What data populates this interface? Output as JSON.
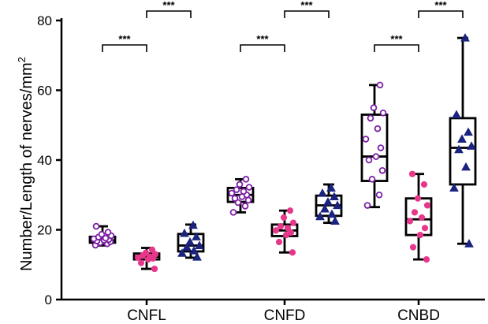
{
  "chart_data": {
    "type": "box",
    "ylabel": "Number/Length of nerves/mm",
    "ylabel_superscript": "2",
    "ylim": [
      0,
      80
    ],
    "yticks": [
      "0",
      "20",
      "40",
      "60",
      "80"
    ],
    "categories": [
      "CNFL",
      "CNFD",
      "CNBD"
    ],
    "series": [
      {
        "style": "purple-open-circle",
        "color": "#7b1fa2"
      },
      {
        "style": "pink-filled-circle",
        "color": "#e8378a"
      },
      {
        "style": "navy-filled-triangle",
        "color": "#1a237e"
      }
    ],
    "groups": [
      {
        "category": "CNFL",
        "boxes": [
          {
            "series": 0,
            "min": 15.5,
            "q1": 16.3,
            "median": 17.0,
            "q3": 18.0,
            "max": 21.0,
            "points": [
              15.6,
              16.0,
              16.3,
              16.6,
              16.8,
              17.0,
              17.2,
              17.4,
              17.6,
              17.9,
              18.3,
              18.7,
              19.3,
              21.0
            ]
          },
          {
            "series": 1,
            "min": 8.8,
            "q1": 11.5,
            "median": 12.3,
            "q3": 13.2,
            "max": 14.8,
            "points": [
              8.8,
              10.5,
              11.5,
              11.8,
              12.0,
              12.3,
              12.6,
              13.0,
              13.4,
              14.3
            ]
          },
          {
            "series": 2,
            "min": 12.0,
            "q1": 13.8,
            "median": 15.5,
            "q3": 18.8,
            "max": 21.5,
            "points": [
              12.2,
              13.3,
              14.0,
              15.0,
              15.5,
              16.5,
              18.0,
              19.0,
              21.3
            ]
          }
        ],
        "significance": [
          {
            "from": 0,
            "to": 1,
            "label": "***"
          },
          {
            "from": 1,
            "to": 2,
            "label": "***"
          }
        ]
      },
      {
        "category": "CNFD",
        "boxes": [
          {
            "series": 0,
            "min": 25.0,
            "q1": 28.0,
            "median": 30.0,
            "q3": 32.0,
            "max": 34.5,
            "points": [
              25.0,
              26.8,
              27.8,
              28.5,
              29.0,
              29.5,
              30.0,
              30.5,
              31.0,
              31.5,
              32.2,
              33.0,
              34.5
            ]
          },
          {
            "series": 1,
            "min": 13.5,
            "q1": 18.2,
            "median": 19.8,
            "q3": 21.5,
            "max": 25.5,
            "points": [
              13.5,
              16.5,
              18.5,
              19.2,
              19.8,
              20.5,
              21.0,
              22.0,
              23.5,
              25.5
            ]
          },
          {
            "series": 2,
            "min": 22.0,
            "q1": 24.0,
            "median": 27.0,
            "q3": 29.8,
            "max": 33.0,
            "points": [
              22.5,
              23.8,
              24.5,
              26.0,
              27.0,
              28.0,
              29.5,
              30.5,
              32.0
            ]
          }
        ],
        "significance": [
          {
            "from": 0,
            "to": 1,
            "label": "***"
          },
          {
            "from": 1,
            "to": 2,
            "label": "***"
          }
        ]
      },
      {
        "category": "CNBD",
        "boxes": [
          {
            "series": 0,
            "min": 26.5,
            "q1": 34.0,
            "median": 41.0,
            "q3": 53.0,
            "max": 61.5,
            "points": [
              27.0,
              30.0,
              34.5,
              37.0,
              40.0,
              41.0,
              43.5,
              46.0,
              49.0,
              52.0,
              53.5,
              55.0,
              61.5
            ]
          },
          {
            "series": 1,
            "min": 11.5,
            "q1": 18.5,
            "median": 23.0,
            "q3": 29.0,
            "max": 36.0,
            "points": [
              11.5,
              15.0,
              18.5,
              20.5,
              22.5,
              23.5,
              25.0,
              27.0,
              29.0,
              33.0,
              36.0
            ]
          },
          {
            "series": 2,
            "min": 16.0,
            "q1": 33.0,
            "median": 43.5,
            "q3": 52.0,
            "max": 75.0,
            "points": [
              16.0,
              32.0,
              38.0,
              43.0,
              44.0,
              46.0,
              48.0,
              53.0,
              75.0
            ]
          }
        ],
        "significance": [
          {
            "from": 0,
            "to": 1,
            "label": "***"
          },
          {
            "from": 1,
            "to": 2,
            "label": "***"
          }
        ]
      }
    ]
  }
}
